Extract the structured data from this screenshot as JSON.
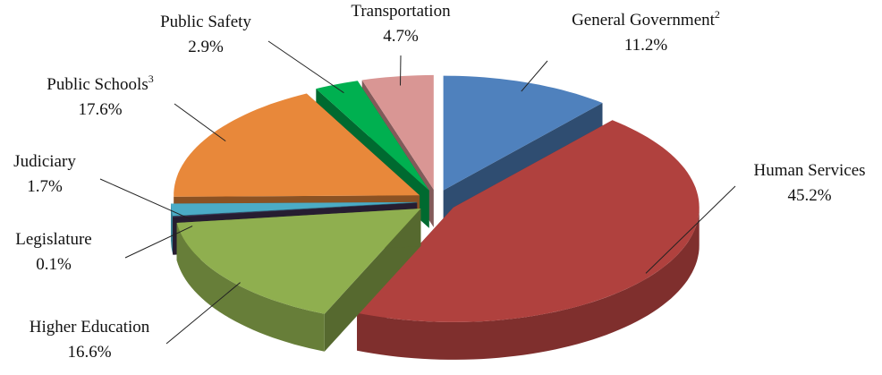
{
  "chart_data": {
    "type": "pie3d",
    "categories": [
      "General Government",
      "Human Services",
      "Higher Education",
      "Legislature",
      "Judiciary",
      "Public Schools",
      "Public Safety",
      "Transportation"
    ],
    "category_notes": [
      "2",
      null,
      null,
      null,
      null,
      "3",
      null,
      null
    ],
    "values": [
      11.2,
      45.2,
      16.6,
      0.1,
      1.7,
      17.6,
      2.9,
      4.7
    ],
    "value_labels": [
      "11.2%",
      "45.2%",
      "16.6%",
      "0.1%",
      "1.7%",
      "17.6%",
      "2.9%",
      "4.7%"
    ],
    "colors": [
      "#4f81bd",
      "#b0413e",
      "#8faf4f",
      "#403152",
      "#4bacc6",
      "#e8883a",
      "#00b050",
      "#d99694"
    ]
  }
}
